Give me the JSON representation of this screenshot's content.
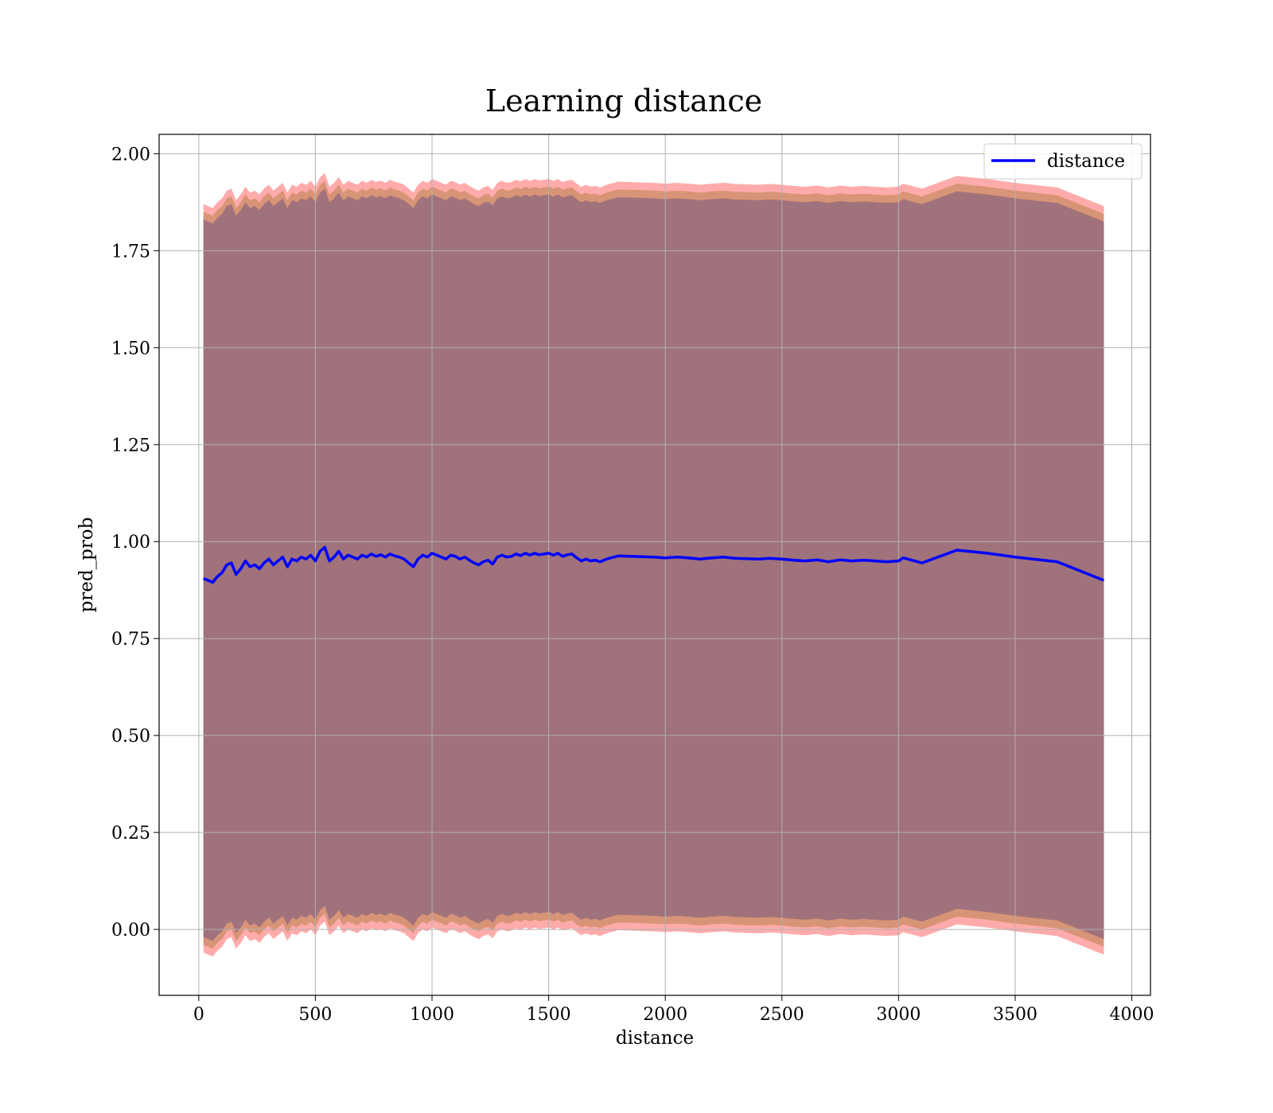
{
  "chart_data": {
    "type": "line",
    "title": "Learning distance",
    "xlabel": "distance",
    "ylabel": "pred_prob",
    "xlim": [
      -170,
      4080
    ],
    "ylim": [
      -0.17,
      2.05
    ],
    "xticks": [
      0,
      500,
      1000,
      1500,
      2000,
      2500,
      3000,
      3500,
      4000
    ],
    "yticks": [
      0.0,
      0.25,
      0.5,
      0.75,
      1.0,
      1.25,
      1.5,
      1.75,
      2.0
    ],
    "xtick_labels": [
      "0",
      "500",
      "1000",
      "1500",
      "2000",
      "2500",
      "3000",
      "3500",
      "4000"
    ],
    "ytick_labels": [
      "0.00",
      "0.25",
      "0.50",
      "0.75",
      "1.00",
      "1.25",
      "1.50",
      "1.75",
      "2.00"
    ],
    "grid": true,
    "legend": {
      "position": "top-right",
      "entries": [
        "distance"
      ]
    },
    "series": [
      {
        "name": "distance",
        "color": "#0000ff",
        "x": [
          20,
          40,
          60,
          80,
          100,
          120,
          140,
          160,
          180,
          200,
          220,
          240,
          260,
          280,
          300,
          320,
          340,
          360,
          380,
          400,
          420,
          440,
          460,
          480,
          500,
          520,
          540,
          560,
          580,
          600,
          620,
          640,
          660,
          680,
          700,
          720,
          740,
          760,
          780,
          800,
          820,
          840,
          860,
          880,
          900,
          920,
          940,
          960,
          980,
          1000,
          1020,
          1040,
          1060,
          1080,
          1100,
          1120,
          1140,
          1160,
          1180,
          1200,
          1220,
          1240,
          1260,
          1280,
          1300,
          1320,
          1340,
          1360,
          1380,
          1400,
          1420,
          1440,
          1460,
          1480,
          1500,
          1520,
          1540,
          1560,
          1580,
          1600,
          1620,
          1640,
          1660,
          1680,
          1700,
          1720,
          1740,
          1760,
          1780,
          1800,
          1850,
          1900,
          1950,
          2000,
          2050,
          2100,
          2150,
          2200,
          2250,
          2300,
          2350,
          2400,
          2450,
          2500,
          2550,
          2600,
          2650,
          2700,
          2750,
          2800,
          2850,
          2900,
          2950,
          3000,
          3020,
          3100,
          3250,
          3380,
          3500,
          3680,
          3880
        ],
        "y": [
          0.905,
          0.9,
          0.895,
          0.91,
          0.92,
          0.94,
          0.945,
          0.915,
          0.93,
          0.95,
          0.935,
          0.94,
          0.93,
          0.945,
          0.955,
          0.94,
          0.95,
          0.96,
          0.935,
          0.955,
          0.95,
          0.96,
          0.955,
          0.965,
          0.95,
          0.975,
          0.985,
          0.95,
          0.96,
          0.975,
          0.955,
          0.965,
          0.96,
          0.955,
          0.965,
          0.96,
          0.968,
          0.962,
          0.966,
          0.96,
          0.968,
          0.963,
          0.96,
          0.955,
          0.945,
          0.935,
          0.955,
          0.965,
          0.96,
          0.97,
          0.965,
          0.96,
          0.955,
          0.965,
          0.962,
          0.955,
          0.96,
          0.952,
          0.945,
          0.94,
          0.948,
          0.952,
          0.942,
          0.96,
          0.965,
          0.96,
          0.962,
          0.968,
          0.964,
          0.97,
          0.965,
          0.97,
          0.966,
          0.968,
          0.97,
          0.965,
          0.97,
          0.962,
          0.966,
          0.968,
          0.958,
          0.95,
          0.955,
          0.95,
          0.952,
          0.948,
          0.953,
          0.957,
          0.96,
          0.963,
          0.962,
          0.961,
          0.96,
          0.958,
          0.96,
          0.958,
          0.955,
          0.958,
          0.96,
          0.957,
          0.956,
          0.955,
          0.957,
          0.955,
          0.952,
          0.95,
          0.953,
          0.948,
          0.953,
          0.95,
          0.952,
          0.95,
          0.948,
          0.95,
          0.958,
          0.945,
          0.978,
          0.97,
          0.96,
          0.948,
          0.9
        ]
      }
    ],
    "bands": [
      {
        "color": "#ff6666",
        "opacity": 0.55,
        "offset": 0.965
      },
      {
        "color": "#c88a60",
        "opacity": 0.7,
        "offset": 0.945
      },
      {
        "color": "#a0727c",
        "opacity": 1.0,
        "offset": 0.925
      }
    ]
  }
}
